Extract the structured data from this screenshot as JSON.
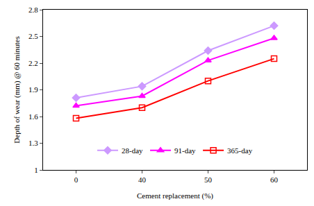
{
  "chart_data": {
    "type": "line",
    "x_label": "Cement replacement (%)",
    "y_label": "Depth of wear (mm) @ 60 minutes",
    "categories": [
      "0",
      "40",
      "50",
      "60"
    ],
    "series": [
      {
        "name": "28-day",
        "color": "#cc99ff",
        "marker": "diamond",
        "line_style": "solid",
        "values": [
          1.81,
          1.94,
          2.34,
          2.62
        ]
      },
      {
        "name": "91-day",
        "color": "#ff00ff",
        "marker": "triangle-up",
        "line_style": "solid",
        "values": [
          1.72,
          1.83,
          2.23,
          2.48
        ]
      },
      {
        "name": "365-day",
        "color": "#ff0000",
        "marker": "square-open",
        "line_style": "solid",
        "values": [
          1.58,
          1.7,
          2.0,
          2.25
        ]
      }
    ],
    "ylim": [
      1,
      2.8
    ],
    "yticks": [
      1,
      1.3,
      1.6,
      1.9,
      2.2,
      2.5,
      2.8
    ],
    "grid": false,
    "legend": "bottom"
  }
}
